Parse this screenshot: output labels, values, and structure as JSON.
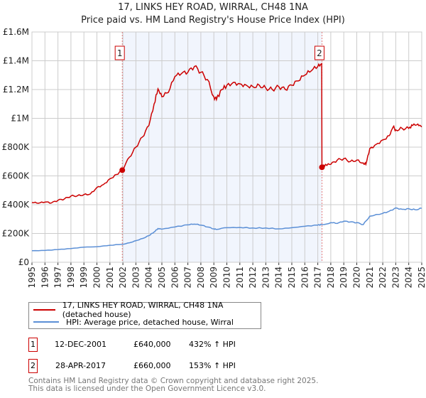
{
  "title_line1": "17, LINKS HEY ROAD, WIRRAL, CH48 1NA",
  "title_line2": "Price paid vs. HM Land Registry's House Price Index (HPI)",
  "chart_data": {
    "type": "line",
    "xlim": [
      1995,
      2025
    ],
    "ylim": [
      0,
      1600000
    ],
    "yticks": [
      0,
      200000,
      400000,
      600000,
      800000,
      1000000,
      1200000,
      1400000,
      1600000
    ],
    "ytick_labels": [
      "£0",
      "£200K",
      "£400K",
      "£600K",
      "£800K",
      "£1M",
      "£1.2M",
      "£1.4M",
      "£1.6M"
    ],
    "xticks": [
      "1995",
      "1996",
      "1997",
      "1998",
      "1999",
      "2000",
      "2001",
      "2002",
      "2003",
      "2004",
      "2005",
      "2006",
      "2007",
      "2008",
      "2009",
      "2010",
      "2011",
      "2012",
      "2013",
      "2014",
      "2015",
      "2016",
      "2017",
      "2018",
      "2019",
      "2020",
      "2021",
      "2022",
      "2023",
      "2024",
      "2025"
    ],
    "grid": true,
    "shaded_range": [
      2001.95,
      2017.32
    ],
    "series": [
      {
        "name": "17, LINKS HEY ROAD, WIRRAL, CH48 1NA (detached house)",
        "color": "#cc0000",
        "x": [
          1995,
          1995.5,
          1996,
          1996.5,
          1997,
          1997.5,
          1998,
          1998.5,
          1999,
          1999.5,
          2000,
          2000.5,
          2001,
          2001.5,
          2001.95,
          2002.5,
          2003,
          2003.5,
          2004,
          2004.4,
          2004.7,
          2005,
          2005.5,
          2006,
          2006.5,
          2007,
          2007.5,
          2008,
          2008.5,
          2009,
          2009.2,
          2009.6,
          2010,
          2010.5,
          2011,
          2011.5,
          2012,
          2012.5,
          2013,
          2013.5,
          2014,
          2014.5,
          2015,
          2015.5,
          2016,
          2016.5,
          2017,
          2017.3,
          2017.32,
          2017.6,
          2018,
          2018.5,
          2019,
          2019.5,
          2020,
          2020.5,
          2020.7,
          2021,
          2021.5,
          2022,
          2022.5,
          2022.8,
          2023,
          2023.5,
          2024,
          2024.3,
          2024.7,
          2025
        ],
        "y": [
          415000,
          410000,
          418000,
          412000,
          430000,
          440000,
          460000,
          462000,
          470000,
          475000,
          520000,
          540000,
          580000,
          610000,
          640000,
          730000,
          800000,
          870000,
          950000,
          1100000,
          1205000,
          1150000,
          1180000,
          1290000,
          1310000,
          1320000,
          1360000,
          1320000,
          1270000,
          1150000,
          1130000,
          1200000,
          1230000,
          1250000,
          1240000,
          1230000,
          1220000,
          1230000,
          1210000,
          1200000,
          1220000,
          1200000,
          1230000,
          1260000,
          1300000,
          1330000,
          1360000,
          1380000,
          660000,
          680000,
          680000,
          710000,
          720000,
          700000,
          710000,
          690000,
          680000,
          790000,
          820000,
          850000,
          880000,
          940000,
          920000,
          930000,
          930000,
          950000,
          960000,
          940000
        ]
      },
      {
        "name": "HPI: Average price, detached house, Wirral",
        "color": "#5b8fd6",
        "x": [
          1995,
          1996,
          1997,
          1998,
          1999,
          2000,
          2001,
          2001.95,
          2002.5,
          2003,
          2003.5,
          2004,
          2004.4,
          2004.7,
          2005,
          2006,
          2007,
          2007.5,
          2008,
          2008.5,
          2009,
          2009.2,
          2010,
          2011,
          2012,
          2013,
          2014,
          2015,
          2016,
          2017,
          2017.32,
          2018,
          2018.5,
          2019,
          2019.5,
          2020,
          2020.5,
          2021,
          2022,
          2022.5,
          2023,
          2023.5,
          2024,
          2024.5,
          2025
        ],
        "y": [
          80000,
          82000,
          88000,
          95000,
          105000,
          108000,
          118000,
          125000,
          135000,
          150000,
          165000,
          185000,
          210000,
          235000,
          230000,
          245000,
          260000,
          265000,
          258000,
          245000,
          232000,
          228000,
          240000,
          242000,
          238000,
          238000,
          232000,
          240000,
          250000,
          258000,
          262000,
          275000,
          270000,
          285000,
          280000,
          275000,
          262000,
          320000,
          340000,
          355000,
          378000,
          368000,
          372000,
          365000,
          375000
        ]
      }
    ],
    "annotations": [
      {
        "label": "1",
        "x": 2001.95,
        "y": 640000
      },
      {
        "label": "2",
        "x": 2017.32,
        "y": 660000
      }
    ]
  },
  "legend": {
    "item1": "17, LINKS HEY ROAD, WIRRAL, CH48 1NA (detached house)",
    "item2": "HPI: Average price, detached house, Wirral"
  },
  "transactions": [
    {
      "num": "1",
      "date": "12-DEC-2001",
      "price": "£640,000",
      "hpi": "432% ↑ HPI"
    },
    {
      "num": "2",
      "date": "28-APR-2017",
      "price": "£660,000",
      "hpi": "153% ↑ HPI"
    }
  ],
  "footer_line1": "Contains HM Land Registry data © Crown copyright and database right 2025.",
  "footer_line2": "This data is licensed under the Open Government Licence v3.0."
}
